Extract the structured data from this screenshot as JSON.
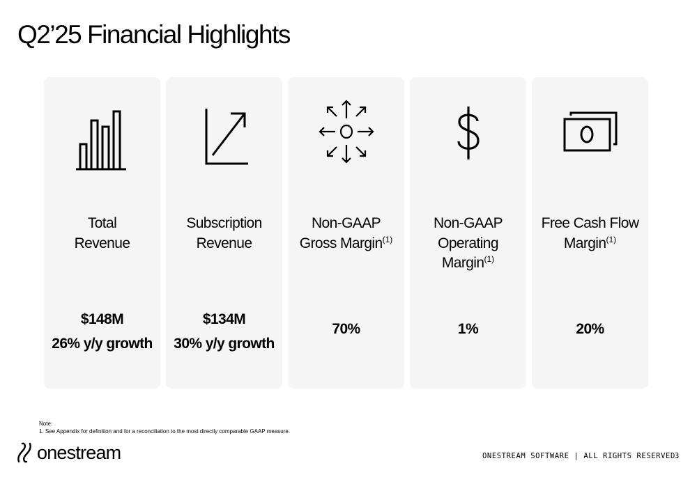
{
  "slide": {
    "title": "Q2’25 Financial Highlights",
    "cards": [
      {
        "icon": "bar-chart-icon",
        "label_line1": "Total",
        "label_line2": "Revenue",
        "label_line3": "",
        "footnote_marker": "",
        "value": "$148M",
        "growth": "26% y/y growth"
      },
      {
        "icon": "trend-up-arrow-icon",
        "label_line1": "Subscription",
        "label_line2": "Revenue",
        "label_line3": "",
        "footnote_marker": "",
        "value": "$134M",
        "growth": "30% y/y growth"
      },
      {
        "icon": "expand-arrows-icon",
        "label_line1": "Non-GAAP",
        "label_line2": "Gross Margin",
        "label_line3": "",
        "footnote_marker": "(1)",
        "value": "70%",
        "growth": ""
      },
      {
        "icon": "dollar-sign-icon",
        "label_line1": "Non-GAAP",
        "label_line2": "Operating",
        "label_line3": "Margin",
        "footnote_marker": "(1)",
        "value": "1%",
        "growth": ""
      },
      {
        "icon": "cash-bills-icon",
        "label_line1": "Free Cash Flow",
        "label_line2": "Margin",
        "label_line3": "",
        "footnote_marker": "(1)",
        "value": "20%",
        "growth": ""
      }
    ],
    "note_heading": "Note:",
    "note_text": "1.   See Appendix for definition and for a reconciliation to the most directly comparable GAAP measure.",
    "logo_text": "onestream",
    "footer_text": "ONESTREAM SOFTWARE | ALL RIGHTS RESERVED.",
    "page_number": "3"
  }
}
